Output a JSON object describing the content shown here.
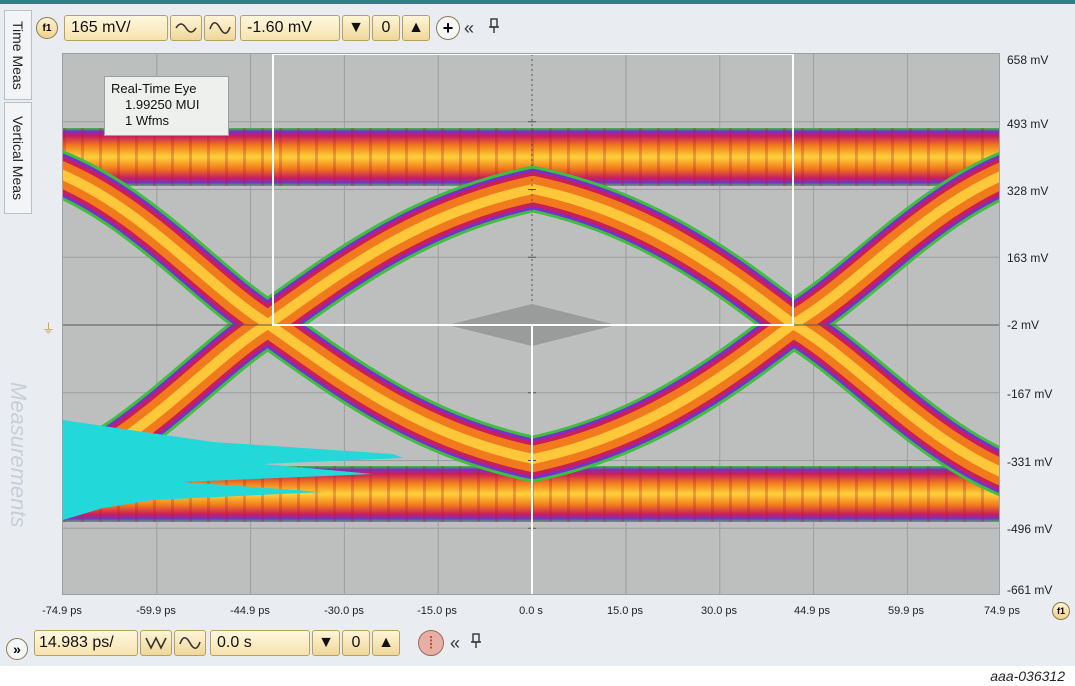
{
  "side_tabs": [
    "Time Meas",
    "Vertical Meas",
    "Measurements"
  ],
  "vertical": {
    "channel": "f1",
    "scale": "165 mV/",
    "offset": "-1.60 mV"
  },
  "horizontal": {
    "scale": "14.983 ps/",
    "position": "0.0 s"
  },
  "info_box": {
    "title": "Real-Time Eye",
    "line1": "1.99250 MUI",
    "line2": "1 Wfms"
  },
  "y_axis_labels": [
    "658 mV",
    "493 mV",
    "328 mV",
    "163 mV",
    "-2 mV",
    "-167 mV",
    "-331 mV",
    "-496 mV",
    "-661 mV"
  ],
  "x_axis_labels": [
    "-74.9 ps",
    "-59.9 ps",
    "-44.9 ps",
    "-30.0 ps",
    "-15.0 ps",
    "0.0 s",
    "15.0 ps",
    "30.0 ps",
    "44.9 ps",
    "59.9 ps",
    "74.9 ps"
  ],
  "x_axis_channel": "f1",
  "figure_id": "aaa-036312",
  "colors": {
    "grid_bg": "#bdbfbe",
    "eye_hot": "#ffd23a",
    "eye_mid": "#f07a1c",
    "eye_edge": "#c91e5c",
    "histogram": "#22d8d8",
    "accent": "#2f7f86"
  },
  "icons": {
    "vertical_waveform": "sine-wave-icon",
    "arrows": [
      "arrow-down-icon",
      "zero-icon",
      "arrow-up-icon"
    ],
    "add": "plus-circle-icon",
    "collapse": "double-chevron-left-icon",
    "pin": "pin-icon",
    "expand": "double-chevron-right-icon"
  }
}
